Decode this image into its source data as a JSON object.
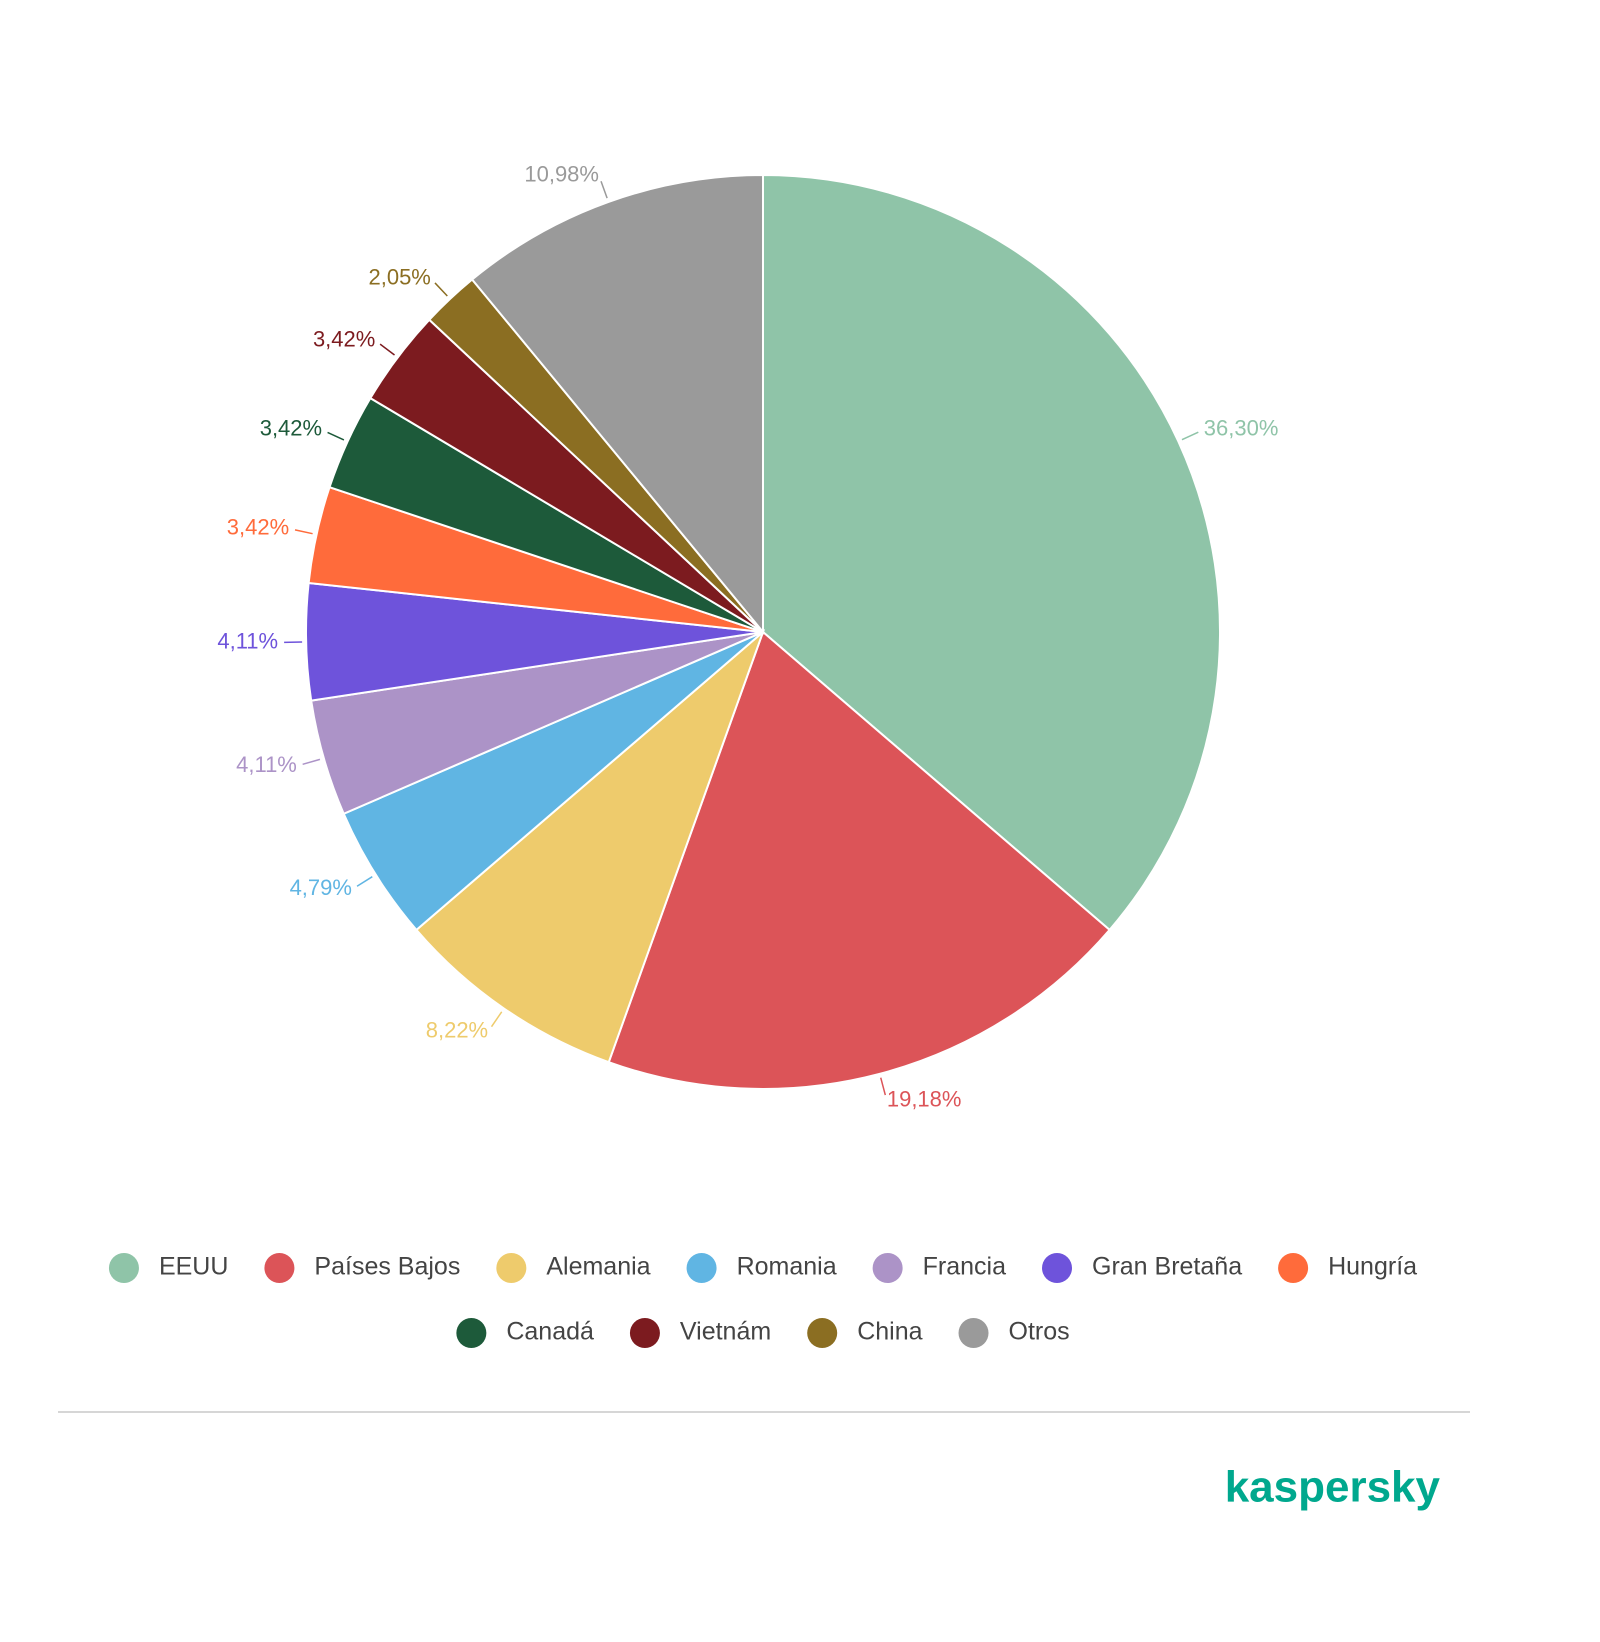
{
  "chart_data": {
    "type": "pie",
    "categories": [
      "EEUU",
      "Países Bajos",
      "Alemania",
      "Romania",
      "Francia",
      "Gran Bretaña",
      "Hungría",
      "Canadá",
      "Vietnám",
      "China",
      "Otros"
    ],
    "values": [
      36.3,
      19.18,
      8.22,
      4.79,
      4.11,
      4.11,
      3.42,
      3.42,
      3.42,
      2.05,
      10.98
    ],
    "value_labels": [
      "36,30%",
      "19,18%",
      "8,22%",
      "4,79%",
      "4,11%",
      "4,11%",
      "3,42%",
      "3,42%",
      "3,42%",
      "2,05%",
      "10,98%"
    ],
    "colors": [
      "#8fc4a8",
      "#dc5458",
      "#eecb6c",
      "#60b5e3",
      "#ac93c7",
      "#6e53db",
      "#ff6b3b",
      "#1d5a3a",
      "#7c1b1f",
      "#8b6e22",
      "#9a9a9a"
    ],
    "legend": "bottom"
  },
  "footer": {
    "logo": "kaspersky"
  }
}
